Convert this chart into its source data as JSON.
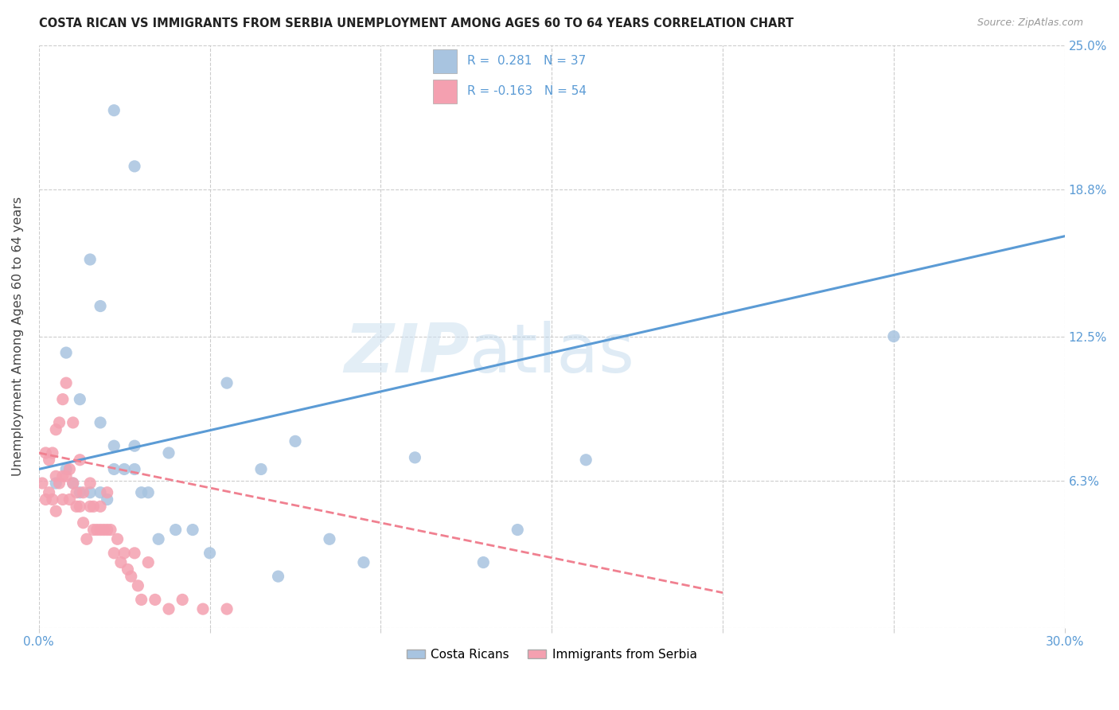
{
  "title": "COSTA RICAN VS IMMIGRANTS FROM SERBIA UNEMPLOYMENT AMONG AGES 60 TO 64 YEARS CORRELATION CHART",
  "source": "Source: ZipAtlas.com",
  "ylabel": "Unemployment Among Ages 60 to 64 years",
  "xlim": [
    0.0,
    0.3
  ],
  "ylim": [
    0.0,
    0.25
  ],
  "xticks": [
    0.0,
    0.05,
    0.1,
    0.15,
    0.2,
    0.25,
    0.3
  ],
  "xticklabels_show": [
    "0.0%",
    "30.0%"
  ],
  "ytick_positions": [
    0.0,
    0.063,
    0.125,
    0.188,
    0.25
  ],
  "ytick_labels": [
    "",
    "6.3%",
    "12.5%",
    "18.8%",
    "25.0%"
  ],
  "color_cr": "#a8c4e0",
  "color_sr": "#f4a0b0",
  "trendline_color_cr": "#5b9bd5",
  "trendline_color_sr": "#f08090",
  "background_color": "#ffffff",
  "grid_color": "#cccccc",
  "costa_ricans_x": [
    0.022,
    0.028,
    0.015,
    0.018,
    0.008,
    0.012,
    0.018,
    0.022,
    0.028,
    0.032,
    0.038,
    0.012,
    0.018,
    0.022,
    0.028,
    0.035,
    0.045,
    0.055,
    0.065,
    0.075,
    0.085,
    0.095,
    0.11,
    0.13,
    0.14,
    0.16,
    0.25,
    0.005,
    0.008,
    0.01,
    0.015,
    0.02,
    0.025,
    0.03,
    0.04,
    0.05,
    0.07
  ],
  "costa_ricans_y": [
    0.222,
    0.198,
    0.158,
    0.138,
    0.118,
    0.098,
    0.088,
    0.078,
    0.068,
    0.058,
    0.075,
    0.058,
    0.058,
    0.068,
    0.078,
    0.038,
    0.042,
    0.105,
    0.068,
    0.08,
    0.038,
    0.028,
    0.073,
    0.028,
    0.042,
    0.072,
    0.125,
    0.062,
    0.068,
    0.062,
    0.058,
    0.055,
    0.068,
    0.058,
    0.042,
    0.032,
    0.022
  ],
  "serbia_x": [
    0.001,
    0.002,
    0.002,
    0.003,
    0.003,
    0.004,
    0.004,
    0.005,
    0.005,
    0.005,
    0.006,
    0.006,
    0.007,
    0.007,
    0.007,
    0.008,
    0.008,
    0.009,
    0.009,
    0.01,
    0.01,
    0.011,
    0.011,
    0.012,
    0.012,
    0.013,
    0.013,
    0.014,
    0.015,
    0.015,
    0.016,
    0.016,
    0.017,
    0.018,
    0.018,
    0.019,
    0.02,
    0.02,
    0.021,
    0.022,
    0.023,
    0.024,
    0.025,
    0.026,
    0.027,
    0.028,
    0.029,
    0.03,
    0.032,
    0.034,
    0.038,
    0.042,
    0.048,
    0.055
  ],
  "serbia_y": [
    0.062,
    0.075,
    0.055,
    0.072,
    0.058,
    0.075,
    0.055,
    0.085,
    0.065,
    0.05,
    0.088,
    0.062,
    0.098,
    0.065,
    0.055,
    0.105,
    0.065,
    0.068,
    0.055,
    0.088,
    0.062,
    0.058,
    0.052,
    0.072,
    0.052,
    0.058,
    0.045,
    0.038,
    0.052,
    0.062,
    0.052,
    0.042,
    0.042,
    0.052,
    0.042,
    0.042,
    0.058,
    0.042,
    0.042,
    0.032,
    0.038,
    0.028,
    0.032,
    0.025,
    0.022,
    0.032,
    0.018,
    0.012,
    0.028,
    0.012,
    0.008,
    0.012,
    0.008,
    0.008
  ],
  "cr_trend_x0": 0.0,
  "cr_trend_y0": 0.068,
  "cr_trend_x1": 0.3,
  "cr_trend_y1": 0.168,
  "sr_trend_x0": 0.0,
  "sr_trend_y0": 0.075,
  "sr_trend_x1": 0.2,
  "sr_trend_y1": 0.015
}
